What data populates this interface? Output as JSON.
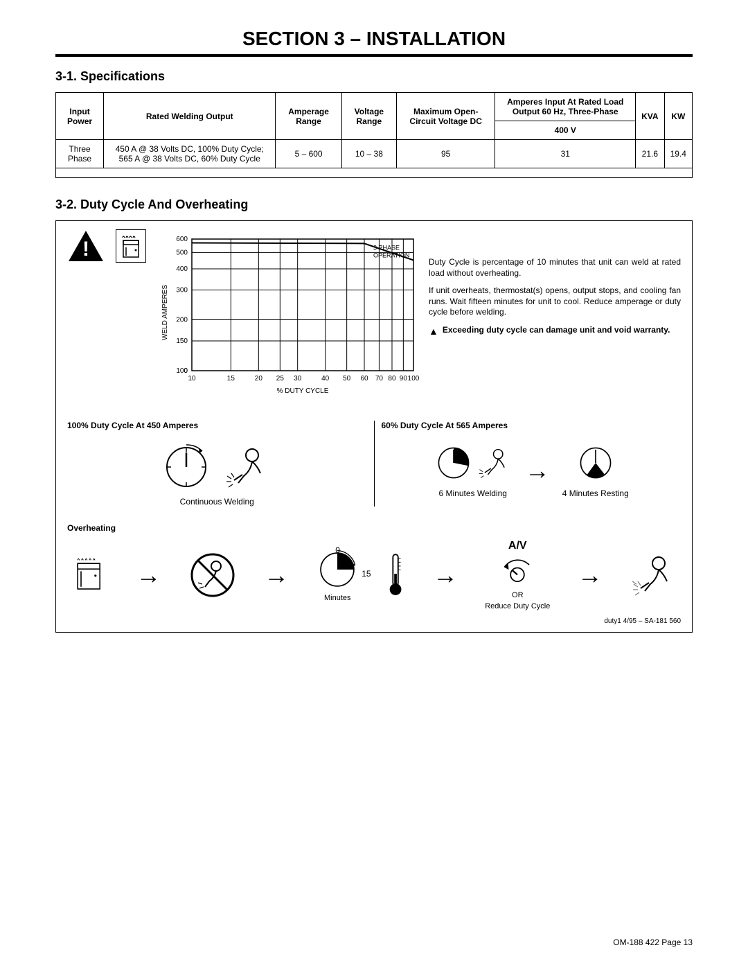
{
  "section_title": "SECTION 3 – INSTALLATION",
  "sub1": "3-1.  Specifications",
  "sub2": "3-2.  Duty Cycle And Overheating",
  "table": {
    "headers": {
      "c1": "Input Power",
      "c2": "Rated Welding Output",
      "c3": "Amperage Range",
      "c4": "Voltage Range",
      "c5": "Maximum Open-Circuit Voltage DC",
      "c6": "Amperes Input At Rated Load Output 60 Hz, Three-Phase",
      "c6a": "400 V",
      "c7": "KVA",
      "c8": "KW"
    },
    "row": {
      "c1": "Three Phase",
      "c2": "450 A @ 38 Volts DC, 100% Duty Cycle; 565 A @ 38 Volts DC, 60% Duty Cycle",
      "c3": "5 – 600",
      "c4": "10 – 38",
      "c5": "95",
      "c6a": "31",
      "c7": "21.6",
      "c8": "19.4"
    }
  },
  "chart": {
    "type": "line",
    "ylabel": "WELD  AMPERES",
    "xlabel": "%  DUTY  CYCLE",
    "y_ticks": [
      "600",
      "500",
      "400",
      "300",
      "200",
      "150",
      "100",
      "0"
    ],
    "x_ticks": [
      "10",
      "15",
      "20",
      "25",
      "30",
      "40",
      "50",
      "60",
      "70",
      "80",
      "90",
      "100"
    ],
    "xscale": "log",
    "yscale": "log",
    "line_label": "3 PHASE OPERATION",
    "line_points_pct_amp": [
      [
        10,
        570
      ],
      [
        60,
        565
      ],
      [
        100,
        450
      ]
    ],
    "line_color": "#000000",
    "grid_color": "#000000",
    "background_color": "#ffffff",
    "line_width": 2,
    "axis_fontsize": 10
  },
  "side_text": {
    "p1": "Duty Cycle is percentage of 10 minutes that unit can weld at rated load without overheating.",
    "p2": "If unit overheats, thermostat(s) opens, output stops, and cooling fan runs. Wait fifteen minutes for unit to cool. Reduce amperage or duty cycle before welding.",
    "warn": "Exceeding duty cycle can damage unit and void warranty."
  },
  "cycles": {
    "left_head": "100% Duty Cycle At 450 Amperes",
    "right_head": "60% Duty Cycle At 565 Amperes",
    "left_caption": "Continuous Welding",
    "right_cap1": "6 Minutes Welding",
    "right_cap2": "4 Minutes Resting"
  },
  "overheat": {
    "head": "Overheating",
    "zero": "0",
    "fifteen": "15",
    "minutes": "Minutes",
    "or": "OR",
    "reduce": "Reduce Duty Cycle",
    "av": "A/V"
  },
  "ref": "duty1 4/95 – SA-181 560",
  "footer": "OM-188 422 Page 13"
}
